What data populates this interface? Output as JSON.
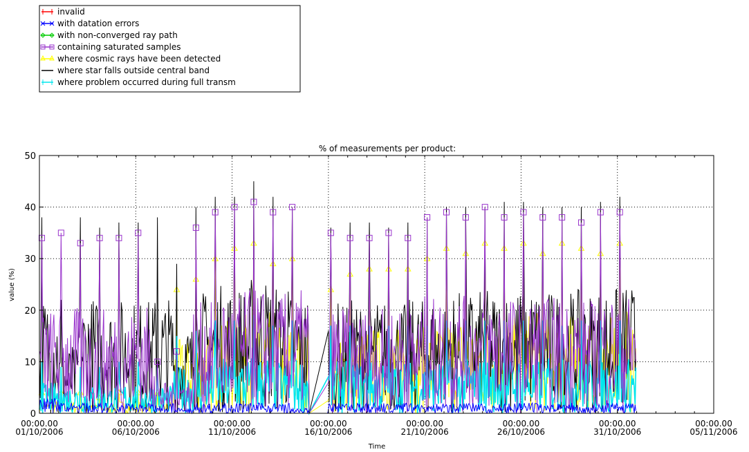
{
  "chart_data": {
    "type": "line",
    "title": "% of measurements per product:",
    "xlabel": "Time",
    "ylabel": "value (%)",
    "ylim": [
      0,
      50
    ],
    "yticks": [
      0,
      10,
      20,
      30,
      40,
      50
    ],
    "xlim": [
      "2006-10-01",
      "2006-11-05"
    ],
    "xticks": [
      {
        "time": "00:00.00",
        "date": "01/10/2006"
      },
      {
        "time": "00:00.00",
        "date": "06/10/2006"
      },
      {
        "time": "00:00.00",
        "date": "11/10/2006"
      },
      {
        "time": "00:00.00",
        "date": "16/10/2006"
      },
      {
        "time": "00:00.00",
        "date": "21/10/2006"
      },
      {
        "time": "00:00.00",
        "date": "26/10/2006"
      },
      {
        "time": "00:00.00",
        "date": "31/10/2006"
      },
      {
        "time": "00:00.00",
        "date": "05/11/2006"
      }
    ],
    "grid": "dotted",
    "legend_position": "top-left, outside plot",
    "legend": [
      {
        "label": "invalid",
        "color": "#ff0000",
        "marker": "plus"
      },
      {
        "label": "with datation errors",
        "color": "#0000ff",
        "marker": "x"
      },
      {
        "label": "with non-converged ray path",
        "color": "#00cc00",
        "marker": "diamond"
      },
      {
        "label": "containing saturated samples",
        "color": "#9933cc",
        "marker": "square"
      },
      {
        "label": "where cosmic rays have been detected",
        "color": "#ffff00",
        "marker": "triangle"
      },
      {
        "label": "where star falls outside central band",
        "color": "#000000",
        "marker": "none"
      },
      {
        "label": "where problem occurred during full transm",
        "color": "#00e5ee",
        "marker": "bar"
      }
    ],
    "x_dates": [
      "2006-10-01",
      "2006-10-02",
      "2006-10-03",
      "2006-10-04",
      "2006-10-05",
      "2006-10-06",
      "2006-10-07",
      "2006-10-08",
      "2006-10-09",
      "2006-10-10",
      "2006-10-11",
      "2006-10-12",
      "2006-10-13",
      "2006-10-14",
      "2006-10-15",
      "2006-10-16",
      "2006-10-17",
      "2006-10-18",
      "2006-10-19",
      "2006-10-20",
      "2006-10-21",
      "2006-10-22",
      "2006-10-23",
      "2006-10-24",
      "2006-10-25",
      "2006-10-26",
      "2006-10-27",
      "2006-10-28",
      "2006-10-29",
      "2006-10-30",
      "2006-10-31"
    ],
    "series": [
      {
        "name": "invalid",
        "color": "#ff0000",
        "values": [
          0,
          0,
          0,
          0,
          0,
          0,
          0,
          0,
          0,
          0,
          0,
          0,
          0,
          0,
          0,
          0,
          0,
          0,
          0,
          0,
          0,
          0,
          0,
          0,
          0,
          0,
          0,
          0,
          0,
          0,
          0
        ]
      },
      {
        "name": "with datation errors",
        "color": "#0000ff",
        "values": [
          3,
          2,
          2,
          2,
          2,
          2,
          2,
          1,
          2,
          2,
          2,
          2,
          2,
          1,
          0,
          2,
          2,
          2,
          2,
          2,
          2,
          2,
          2,
          2,
          2,
          2,
          2,
          2,
          2,
          2,
          2
        ]
      },
      {
        "name": "with non-converged ray path",
        "color": "#00cc00",
        "values": [
          0,
          0,
          0,
          0,
          0,
          0,
          0,
          0,
          0,
          0,
          0,
          0,
          0,
          0,
          0,
          0,
          0,
          0,
          0,
          0,
          0,
          0,
          0,
          0,
          0,
          0,
          0,
          0,
          0,
          0,
          0
        ]
      },
      {
        "name": "containing saturated samples",
        "color": "#9933cc",
        "values": [
          34,
          35,
          33,
          34,
          34,
          35,
          10,
          12,
          36,
          39,
          40,
          41,
          39,
          40,
          0,
          35,
          34,
          34,
          35,
          34,
          38,
          39,
          38,
          40,
          38,
          39,
          38,
          38,
          37,
          39,
          39
        ]
      },
      {
        "name": "where cosmic rays have been detected",
        "color": "#ffff00",
        "values": [
          4,
          4,
          4,
          3,
          4,
          4,
          4,
          24,
          26,
          30,
          32,
          33,
          29,
          30,
          0,
          24,
          27,
          28,
          28,
          28,
          30,
          32,
          31,
          33,
          32,
          33,
          31,
          33,
          32,
          31,
          33
        ]
      },
      {
        "name": "where star falls outside central band",
        "color": "#000000",
        "values": [
          38,
          22,
          38,
          36,
          37,
          37,
          38,
          29,
          40,
          42,
          42,
          45,
          42,
          40,
          0,
          36,
          37,
          37,
          36,
          37,
          38,
          40,
          40,
          40,
          41,
          41,
          40,
          40,
          40,
          41,
          42
        ]
      },
      {
        "name": "where problem occurred during full transm",
        "color": "#00e5ee",
        "values": [
          10,
          9,
          9,
          9,
          10,
          10,
          9,
          15,
          16,
          18,
          18,
          19,
          17,
          18,
          0,
          17,
          17,
          17,
          17,
          17,
          17,
          18,
          18,
          18,
          18,
          18,
          18,
          17,
          18,
          18,
          18
        ]
      }
    ]
  }
}
